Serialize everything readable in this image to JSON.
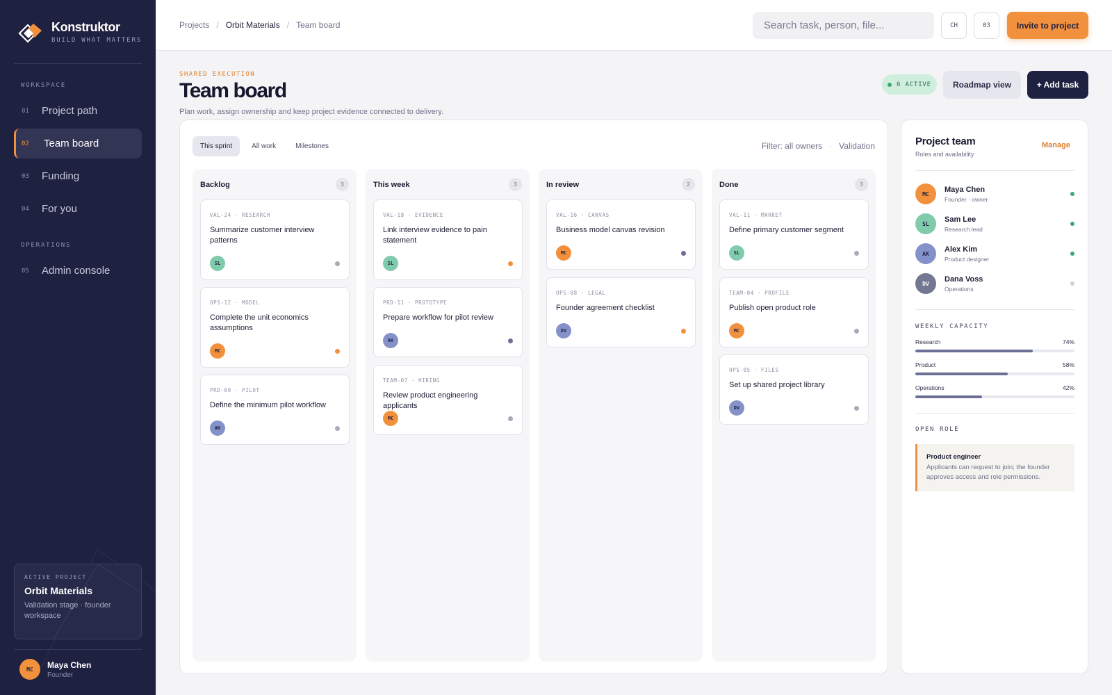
{
  "brand": {
    "name": "Konstruktor",
    "tagline": "BUILD WHAT MATTERS"
  },
  "sidebar": {
    "workspace_label": "WORKSPACE",
    "operations_label": "OPERATIONS",
    "items": [
      {
        "num": "01",
        "label": "Project path"
      },
      {
        "num": "02",
        "label": "Team board",
        "active": true
      },
      {
        "num": "03",
        "label": "Funding"
      },
      {
        "num": "04",
        "label": "For you"
      },
      {
        "num": "05",
        "label": "Admin console"
      }
    ],
    "active_project": {
      "label": "ACTIVE PROJECT",
      "name": "Orbit Materials",
      "desc": "Validation stage · founder workspace"
    },
    "user": {
      "initials": "MC",
      "name": "Maya Chen",
      "role": "Founder"
    }
  },
  "topbar": {
    "breadcrumb": [
      "Projects",
      "Orbit Materials",
      "Team board"
    ],
    "search_placeholder": "Search task, person, file...",
    "chip1": "CH",
    "chip2": "03",
    "invite_label": "Invite to project"
  },
  "header": {
    "eyebrow": "SHARED EXECUTION",
    "title": "Team board",
    "subtitle": "Plan work, assign ownership and keep project evidence connected to delivery.",
    "active_badge": "6 ACTIVE",
    "roadmap_label": "Roadmap view",
    "add_task_label": "+ Add task"
  },
  "board": {
    "tabs": [
      "This sprint",
      "All work",
      "Milestones"
    ],
    "filter": "Filter: all owners",
    "filter_sep": "·",
    "validation": "Validation",
    "columns": [
      {
        "title": "Backlog",
        "count": "3",
        "cards": [
          {
            "meta": "VAL-24 · RESEARCH",
            "title": "Summarize customer interview patterns",
            "owner": "SL",
            "status": "gray"
          },
          {
            "meta": "OPS-12 · MODEL",
            "title": "Complete the unit economics assumptions",
            "owner": "MC",
            "status": "orange"
          },
          {
            "meta": "PRD-09 · PILOT",
            "title": "Define the minimum pilot workflow",
            "owner": "AK",
            "status": "gray"
          }
        ]
      },
      {
        "title": "This week",
        "count": "3",
        "cards": [
          {
            "meta": "VAL-18 · EVIDENCE",
            "title": "Link interview evidence to pain statement",
            "owner": "SL",
            "status": "orange"
          },
          {
            "meta": "PRD-11 · PROTOTYPE",
            "title": "Prepare workflow for pilot review",
            "owner": "AK",
            "status": "navy"
          },
          {
            "meta": "TEAM-07 · HIRING",
            "title": "Review product engineering applicants",
            "owner": "MC",
            "status": "gray"
          }
        ]
      },
      {
        "title": "In review",
        "count": "2",
        "cards": [
          {
            "meta": "VAL-16 · CANVAS",
            "title": "Business model canvas revision",
            "owner": "MC",
            "status": "navy"
          },
          {
            "meta": "OPS-08 · LEGAL",
            "title": "Founder agreement checklist",
            "owner": "DV",
            "status": "orange"
          }
        ]
      },
      {
        "title": "Done",
        "count": "3",
        "cards": [
          {
            "meta": "VAL-11 · MARKET",
            "title": "Define primary customer segment",
            "owner": "SL",
            "status": "gray"
          },
          {
            "meta": "TEAM-04 · PROFILE",
            "title": "Publish open product role",
            "owner": "MC",
            "status": "gray"
          },
          {
            "meta": "OPS-05 · FILES",
            "title": "Set up shared project library",
            "owner": "DV",
            "status": "gray"
          }
        ]
      }
    ]
  },
  "team": {
    "title": "Project team",
    "subtitle": "Roles and availability",
    "manage_label": "Manage",
    "members": [
      {
        "initials": "MC",
        "name": "Maya Chen",
        "role": "Founder · owner",
        "available": true
      },
      {
        "initials": "SL",
        "name": "Sam Lee",
        "role": "Research lead",
        "available": true
      },
      {
        "initials": "AK",
        "name": "Alex Kim",
        "role": "Product designer",
        "available": true
      },
      {
        "initials": "DV",
        "name": "Dana Voss",
        "role": "Operations",
        "available": false
      }
    ],
    "capacity_label": "WEEKLY CAPACITY",
    "capacity": [
      {
        "label": "Research",
        "percent": "74%",
        "value": 0.74
      },
      {
        "label": "Product",
        "percent": "58%",
        "value": 0.58
      },
      {
        "label": "Operations",
        "percent": "42%",
        "value": 0.42
      }
    ],
    "open_role_label": "OPEN ROLE",
    "open_role": {
      "title": "Product engineer",
      "desc": "Applicants can request to join; the founder approves access and role permissions."
    }
  },
  "colors": {
    "accent": "#f2913d",
    "sidebar": "#1f2140",
    "active_badge_bg": "#cfeedd",
    "status_green": "#3ba772"
  },
  "icons": {
    "brand_logo": "stacked-diamond-logo"
  }
}
